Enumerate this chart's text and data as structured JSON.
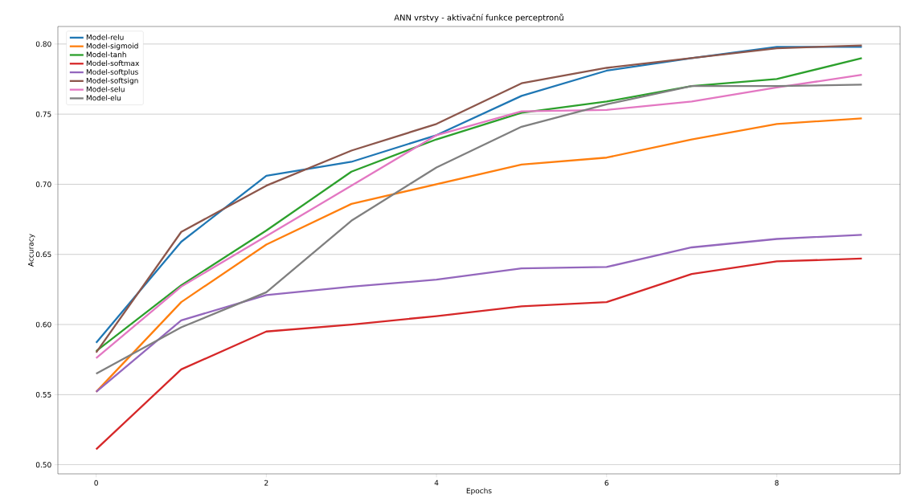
{
  "chart_data": {
    "type": "line",
    "title": "ANN vrstvy - aktivační funkce perceptronů",
    "xlabel": "Epochs",
    "ylabel": "Accuracy",
    "x": [
      0,
      1,
      2,
      3,
      4,
      5,
      6,
      7,
      8,
      9
    ],
    "series": [
      {
        "name": "Model-relu",
        "color": "#1f77b4",
        "values": [
          0.587,
          0.659,
          0.706,
          0.716,
          0.735,
          0.763,
          0.781,
          0.79,
          0.798,
          0.798
        ]
      },
      {
        "name": "Model-sigmoid",
        "color": "#ff7f0e",
        "values": [
          0.552,
          0.616,
          0.657,
          0.686,
          0.7,
          0.714,
          0.719,
          0.732,
          0.743,
          0.747
        ]
      },
      {
        "name": "Model-tanh",
        "color": "#2ca02c",
        "values": [
          0.581,
          0.628,
          0.667,
          0.709,
          0.732,
          0.751,
          0.759,
          0.77,
          0.775,
          0.79
        ]
      },
      {
        "name": "Model-softmax",
        "color": "#d62728",
        "values": [
          0.511,
          0.568,
          0.595,
          0.6,
          0.606,
          0.613,
          0.616,
          0.636,
          0.645,
          0.647
        ]
      },
      {
        "name": "Model-softplus",
        "color": "#9467bd",
        "values": [
          0.552,
          0.603,
          0.621,
          0.627,
          0.632,
          0.64,
          0.641,
          0.655,
          0.661,
          0.664
        ]
      },
      {
        "name": "Model-softsign",
        "color": "#8c564b",
        "values": [
          0.58,
          0.666,
          0.699,
          0.724,
          0.743,
          0.772,
          0.783,
          0.79,
          0.797,
          0.799
        ]
      },
      {
        "name": "Model-selu",
        "color": "#e377c2",
        "values": [
          0.576,
          0.627,
          0.663,
          0.699,
          0.735,
          0.752,
          0.753,
          0.759,
          0.769,
          0.778
        ]
      },
      {
        "name": "Model-elu",
        "color": "#7f7f7f",
        "values": [
          0.565,
          0.598,
          0.623,
          0.674,
          0.712,
          0.741,
          0.757,
          0.77,
          0.77,
          0.771
        ]
      }
    ],
    "xlim": [
      -0.45,
      9.45
    ],
    "ylim": [
      0.4935,
      0.8125
    ],
    "xticks": [
      0,
      2,
      4,
      6,
      8
    ],
    "yticks": [
      {
        "value": 0.5,
        "label": "0.50"
      },
      {
        "value": 0.55,
        "label": "0.55"
      },
      {
        "value": 0.6,
        "label": "0.60"
      },
      {
        "value": 0.65,
        "label": "0.65"
      },
      {
        "value": 0.7,
        "label": "0.70"
      },
      {
        "value": 0.75,
        "label": "0.75"
      },
      {
        "value": 0.8,
        "label": "0.80"
      }
    ],
    "grid": "y",
    "legend": "top left",
    "marker": "none",
    "line_style": "solid"
  }
}
